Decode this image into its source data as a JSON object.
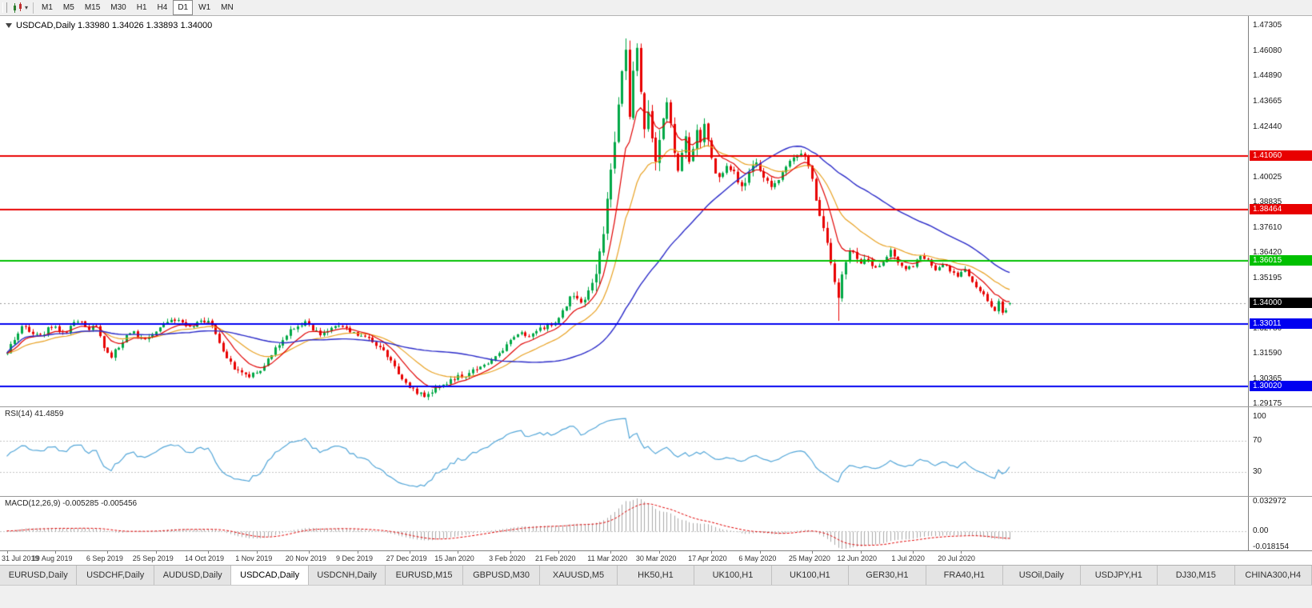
{
  "accent_colors": {
    "up": "#00a846",
    "down": "#e80000",
    "ma_fast": "#e00000",
    "ma_mid": "#e8a020",
    "ma_slow": "#2929c8",
    "rsi_line": "#53a6d8",
    "macd_hist": "#a8a8a8",
    "macd_signal": "#e00000",
    "level_red": "#e80000",
    "level_green": "#00c000",
    "level_blue": "#0000f0"
  },
  "toolbar": {
    "timeframes": [
      "M1",
      "M5",
      "M15",
      "M30",
      "H1",
      "H4",
      "D1",
      "W1",
      "MN"
    ],
    "active_timeframe": "D1"
  },
  "chart": {
    "title": "USDCAD,Daily 1.33980 1.34026 1.33893 1.34000",
    "symbol": "USDCAD",
    "period": "Daily",
    "price_max": 1.4745,
    "price_min": 1.2905,
    "price_labels": [
      "1.47305",
      "1.46080",
      "1.44890",
      "1.43665",
      "1.42440",
      "1.40025",
      "1.38835",
      "1.37610",
      "1.36420",
      "1.35195",
      "1.32780",
      "1.31590",
      "1.30365",
      "1.29175"
    ],
    "levels": [
      {
        "value": 1.4106,
        "label": "1.41060",
        "color": "red"
      },
      {
        "value": 1.38464,
        "label": "1.38464",
        "color": "red"
      },
      {
        "value": 1.36015,
        "label": "1.36015",
        "color": "green"
      },
      {
        "value": 1.33011,
        "label": "1.33011",
        "color": "blue"
      },
      {
        "value": 1.3002,
        "label": "1.30020",
        "color": "blue"
      }
    ],
    "current_price": {
      "value": 1.34,
      "label": "1.34000"
    }
  },
  "rsi": {
    "label": "RSI(14) 41.4859",
    "value": "41.4859",
    "axis_labels": [
      {
        "v": 100,
        "t": "100"
      },
      {
        "v": 70,
        "t": "70"
      },
      {
        "v": 30,
        "t": "30"
      }
    ],
    "guides": [
      70,
      30
    ]
  },
  "macd": {
    "label": "MACD(12,26,9) -0.005285 -0.005456",
    "values": [
      "-0.005285",
      "-0.005456"
    ],
    "axis_labels": [
      {
        "v": 0.032972,
        "t": "0.032972"
      },
      {
        "v": 0,
        "t": "0.00"
      },
      {
        "v": -0.018154,
        "t": "-0.018154"
      }
    ]
  },
  "date_axis": [
    {
      "label": "31 Jul 2019",
      "bar": 0
    },
    {
      "label": "19 Aug 2019",
      "bar": 13
    },
    {
      "label": "6 Sep 2019",
      "bar": 27
    },
    {
      "label": "25 Sep 2019",
      "bar": 40
    },
    {
      "label": "14 Oct 2019",
      "bar": 54
    },
    {
      "label": "1 Nov 2019",
      "bar": 67
    },
    {
      "label": "20 Nov 2019",
      "bar": 81
    },
    {
      "label": "9 Dec 2019",
      "bar": 94
    },
    {
      "label": "27 Dec 2019",
      "bar": 108
    },
    {
      "label": "15 Jan 2020",
      "bar": 121
    },
    {
      "label": "3 Feb 2020",
      "bar": 135
    },
    {
      "label": "21 Feb 2020",
      "bar": 148
    },
    {
      "label": "11 Mar 2020",
      "bar": 162
    },
    {
      "label": "30 Mar 2020",
      "bar": 175
    },
    {
      "label": "17 Apr 2020",
      "bar": 189
    },
    {
      "label": "6 May 2020",
      "bar": 202
    },
    {
      "label": "25 May 2020",
      "bar": 216
    },
    {
      "label": "12 Jun 2020",
      "bar": 229
    },
    {
      "label": "1 Jul 2020",
      "bar": 243
    },
    {
      "label": "20 Jul 2020",
      "bar": 256
    }
  ],
  "tabs": {
    "items": [
      "EURUSD,Daily",
      "USDCHF,Daily",
      "AUDUSD,Daily",
      "USDCAD,Daily",
      "USDCNH,Daily",
      "EURUSD,M15",
      "GBPUSD,M30",
      "XAUUSD,M5",
      "HK50,H1",
      "UK100,H1",
      "UK100,H1",
      "GER30,H1",
      "FRA40,H1",
      "USOil,Daily",
      "USDJPY,H1",
      "DJ30,M15",
      "CHINA300,H4"
    ],
    "active_index": 3
  },
  "chart_data": {
    "type": "candlestick",
    "symbol": "USDCAD",
    "timeframe": "Daily",
    "bars": 270,
    "ohlc_current": {
      "open": "1.33980",
      "high": "1.34026",
      "low": "1.33893",
      "close": "1.34000"
    },
    "key_levels": [
      1.4106,
      1.38464,
      1.36015,
      1.33011,
      1.3002
    ],
    "extremes": {
      "high": 1.4668,
      "high_bar": 166,
      "low": 1.295,
      "low_bar": 112,
      "june_spike_low": 1.3315,
      "june_spike_bar": 223
    },
    "close_anchors": [
      [
        0,
        1.317
      ],
      [
        2,
        1.323
      ],
      [
        4,
        1.3295
      ],
      [
        6,
        1.326
      ],
      [
        9,
        1.324
      ],
      [
        12,
        1.329
      ],
      [
        14,
        1.3265
      ],
      [
        16,
        1.326
      ],
      [
        18,
        1.331
      ],
      [
        20,
        1.3305
      ],
      [
        22,
        1.327
      ],
      [
        24,
        1.3295
      ],
      [
        26,
        1.319
      ],
      [
        28,
        1.3148
      ],
      [
        30,
        1.319
      ],
      [
        32,
        1.324
      ],
      [
        34,
        1.3255
      ],
      [
        36,
        1.323
      ],
      [
        38,
        1.324
      ],
      [
        40,
        1.327
      ],
      [
        42,
        1.329
      ],
      [
        44,
        1.331
      ],
      [
        46,
        1.332
      ],
      [
        48,
        1.3295
      ],
      [
        50,
        1.3285
      ],
      [
        52,
        1.3315
      ],
      [
        54,
        1.332
      ],
      [
        56,
        1.3255
      ],
      [
        58,
        1.3165
      ],
      [
        60,
        1.311
      ],
      [
        62,
        1.3075
      ],
      [
        65,
        1.3055
      ],
      [
        68,
        1.3085
      ],
      [
        70,
        1.313
      ],
      [
        72,
        1.318
      ],
      [
        74,
        1.323
      ],
      [
        76,
        1.3275
      ],
      [
        78,
        1.3295
      ],
      [
        80,
        1.3305
      ],
      [
        82,
        1.3275
      ],
      [
        84,
        1.325
      ],
      [
        86,
        1.327
      ],
      [
        88,
        1.33
      ],
      [
        90,
        1.3285
      ],
      [
        92,
        1.3265
      ],
      [
        94,
        1.325
      ],
      [
        96,
        1.3235
      ],
      [
        98,
        1.322
      ],
      [
        100,
        1.3185
      ],
      [
        102,
        1.315
      ],
      [
        104,
        1.3095
      ],
      [
        106,
        1.3045
      ],
      [
        108,
        1.2998
      ],
      [
        110,
        1.2968
      ],
      [
        112,
        1.2958
      ],
      [
        114,
        1.2975
      ],
      [
        116,
        1.2995
      ],
      [
        118,
        1.3015
      ],
      [
        121,
        1.3045
      ],
      [
        124,
        1.3062
      ],
      [
        127,
        1.309
      ],
      [
        130,
        1.312
      ],
      [
        132,
        1.315
      ],
      [
        134,
        1.3205
      ],
      [
        136,
        1.324
      ],
      [
        138,
        1.3255
      ],
      [
        140,
        1.3235
      ],
      [
        142,
        1.3262
      ],
      [
        144,
        1.3285
      ],
      [
        146,
        1.33
      ],
      [
        148,
        1.332
      ],
      [
        150,
        1.34
      ],
      [
        152,
        1.3445
      ],
      [
        154,
        1.3395
      ],
      [
        156,
        1.3465
      ],
      [
        158,
        1.356
      ],
      [
        160,
        1.3745
      ],
      [
        162,
        1.401
      ],
      [
        164,
        1.436
      ],
      [
        165,
        1.451
      ],
      [
        166,
        1.464
      ],
      [
        167,
        1.43
      ],
      [
        168,
        1.4545
      ],
      [
        169,
        1.4615
      ],
      [
        170,
        1.442
      ],
      [
        171,
        1.427
      ],
      [
        172,
        1.433
      ],
      [
        173,
        1.416
      ],
      [
        174,
        1.406
      ],
      [
        175,
        1.4175
      ],
      [
        176,
        1.428
      ],
      [
        177,
        1.4345
      ],
      [
        178,
        1.424
      ],
      [
        179,
        1.4115
      ],
      [
        180,
        1.4045
      ],
      [
        181,
        1.412
      ],
      [
        182,
        1.4175
      ],
      [
        183,
        1.409
      ],
      [
        184,
        1.415
      ],
      [
        185,
        1.4215
      ],
      [
        186,
        1.418
      ],
      [
        187,
        1.4255
      ],
      [
        188,
        1.4165
      ],
      [
        189,
        1.4085
      ],
      [
        191,
        1.399
      ],
      [
        193,
        1.4065
      ],
      [
        195,
        1.4015
      ],
      [
        197,
        1.3955
      ],
      [
        199,
        1.403
      ],
      [
        201,
        1.4075
      ],
      [
        203,
        1.4015
      ],
      [
        205,
        1.3965
      ],
      [
        207,
        1.4
      ],
      [
        209,
        1.4055
      ],
      [
        211,
        1.4095
      ],
      [
        213,
        1.4125
      ],
      [
        215,
        1.4055
      ],
      [
        216,
        1.3985
      ],
      [
        217,
        1.3905
      ],
      [
        219,
        1.3765
      ],
      [
        221,
        1.3605
      ],
      [
        222,
        1.3495
      ],
      [
        223,
        1.343
      ],
      [
        224,
        1.352
      ],
      [
        225,
        1.36
      ],
      [
        226,
        1.365
      ],
      [
        228,
        1.3622
      ],
      [
        229,
        1.3585
      ],
      [
        231,
        1.362
      ],
      [
        233,
        1.3565
      ],
      [
        235,
        1.36
      ],
      [
        237,
        1.3648
      ],
      [
        239,
        1.3585
      ],
      [
        241,
        1.356
      ],
      [
        243,
        1.3582
      ],
      [
        245,
        1.362
      ],
      [
        247,
        1.36
      ],
      [
        249,
        1.3562
      ],
      [
        251,
        1.359
      ],
      [
        253,
        1.3552
      ],
      [
        255,
        1.3532
      ],
      [
        257,
        1.3558
      ],
      [
        259,
        1.3502
      ],
      [
        261,
        1.3455
      ],
      [
        263,
        1.3412
      ],
      [
        264,
        1.3392
      ],
      [
        265,
        1.3372
      ],
      [
        266,
        1.3402
      ],
      [
        267,
        1.3352
      ],
      [
        268,
        1.3362
      ],
      [
        269,
        1.34
      ]
    ],
    "volatility_segments": [
      [
        0,
        1.0
      ],
      [
        148,
        1.4
      ],
      [
        158,
        3.2
      ],
      [
        168,
        3.6
      ],
      [
        178,
        2.2
      ],
      [
        190,
        1.6
      ],
      [
        205,
        1.3
      ],
      [
        216,
        2.0
      ],
      [
        226,
        1.4
      ],
      [
        233,
        0.9
      ]
    ],
    "moving_averages": [
      {
        "color_role": "ma_fast",
        "method": "ema",
        "period": 9
      },
      {
        "color_role": "ma_mid",
        "method": "ema",
        "period": 21
      },
      {
        "color_role": "ma_slow",
        "method": "sma",
        "period": 50
      }
    ],
    "indicators": [
      {
        "name": "RSI",
        "params": [
          14
        ],
        "display_value": "41.4859"
      },
      {
        "name": "MACD",
        "params": [
          12,
          26,
          9
        ],
        "display_values": [
          "-0.005285",
          "-0.005456"
        ]
      }
    ]
  }
}
